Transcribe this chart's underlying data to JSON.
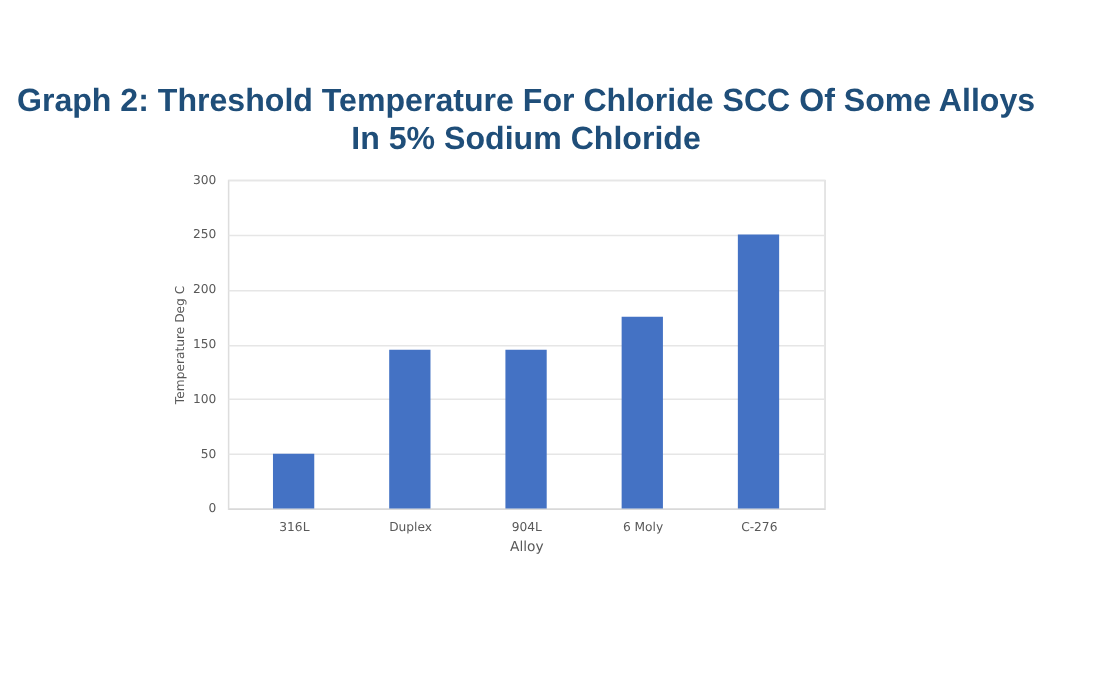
{
  "chart_data": {
    "type": "bar",
    "title": "Graph 2: Threshold Temperature For Chloride SCC Of Some Alloys In 5% Sodium Chloride",
    "xlabel": "Alloy",
    "ylabel": "Temperature Deg C",
    "categories": [
      "316L",
      "Duplex",
      "904L",
      "6 Moly",
      "C-276"
    ],
    "values": [
      50,
      145,
      145,
      175,
      250
    ],
    "color": "#4472c4",
    "ylim": [
      0,
      300
    ],
    "yticks": [
      0,
      50,
      100,
      150,
      200,
      250,
      300
    ],
    "grid": "y"
  }
}
